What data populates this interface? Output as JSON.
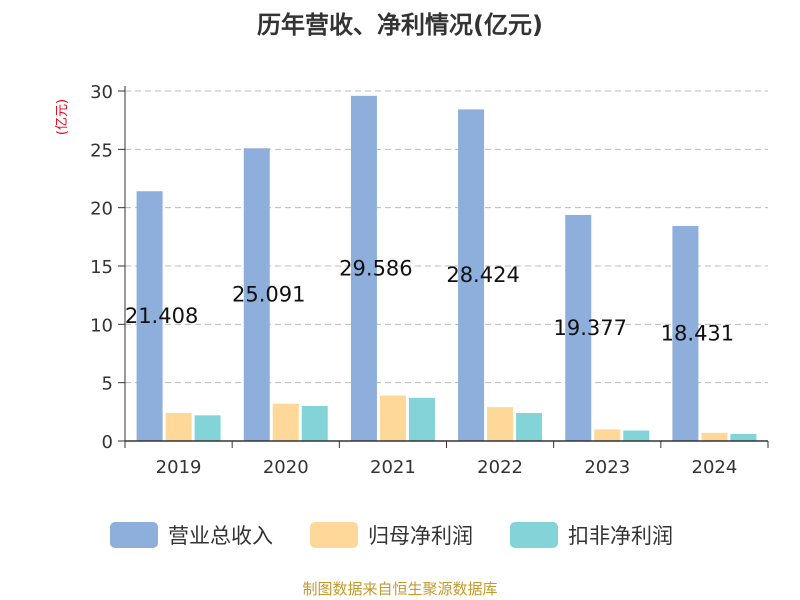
{
  "chart_data": {
    "type": "bar",
    "title": "历年营收、净利情况(亿元)",
    "ylabel": "(亿元)",
    "xlabel": "",
    "ylim": [
      0,
      30
    ],
    "yticks": [
      0,
      5,
      10,
      15,
      20,
      25,
      30
    ],
    "grid": true,
    "legend_position": "bottom",
    "categories": [
      "2019",
      "2020",
      "2021",
      "2022",
      "2023",
      "2024"
    ],
    "series": [
      {
        "name": "营业总收入",
        "color": "#8eaedb",
        "values": [
          21.408,
          25.091,
          29.586,
          28.424,
          19.377,
          18.431
        ],
        "labels": [
          "21.408",
          "25.091",
          "29.586",
          "28.424",
          "19.377",
          "18.431"
        ]
      },
      {
        "name": "归母净利润",
        "color": "#fdd898",
        "values": [
          2.4,
          3.2,
          3.9,
          2.9,
          1.0,
          0.7
        ]
      },
      {
        "name": "扣非净利润",
        "color": "#83d4d8",
        "values": [
          2.2,
          3.0,
          3.7,
          2.4,
          0.9,
          0.6
        ]
      }
    ],
    "source": "制图数据来自恒生聚源数据库"
  }
}
